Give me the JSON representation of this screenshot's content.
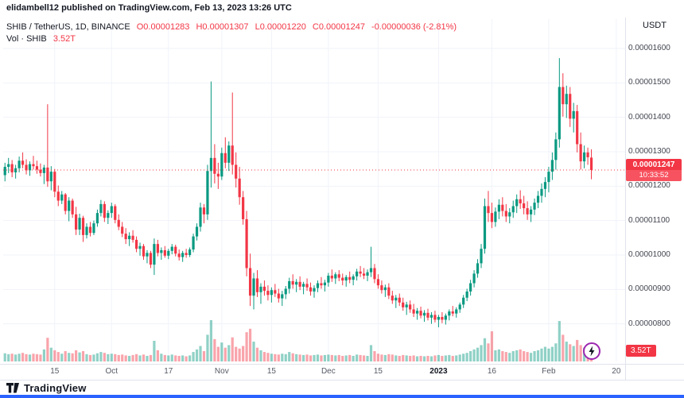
{
  "header": {
    "publisher_line": "elidambell12 published on TradingView.com, Feb 13, 2023 13:26 UTC"
  },
  "legend": {
    "symbol": "SHIB / TetherUS, 1D, BINANCE",
    "open": "O0.00001283",
    "high": "H0.00001307",
    "low": "L0.00001220",
    "close": "C0.00001247",
    "change": "-0.00000036 (-2.81%)",
    "volume_label": "Vol · SHIB",
    "volume_value": "3.52T"
  },
  "price_axis": {
    "currency": "USDT",
    "ticks": [
      "0.00001600",
      "0.00001500",
      "0.00001400",
      "0.00001300",
      "0.00001200",
      "0.00001100",
      "0.00001000",
      "0.00000900",
      "0.00000800"
    ],
    "last_price_tag": {
      "price": "0.00001247",
      "countdown": "10:33:52"
    },
    "volume_tag": "3.52T"
  },
  "time_axis": {
    "ticks": [
      {
        "label": "15",
        "slot": 14
      },
      {
        "label": "Oct",
        "slot": 30
      },
      {
        "label": "17",
        "slot": 46
      },
      {
        "label": "Nov",
        "slot": 61
      },
      {
        "label": "15",
        "slot": 75
      },
      {
        "label": "Dec",
        "slot": 91
      },
      {
        "label": "15",
        "slot": 105
      },
      {
        "label": "2023",
        "slot": 122,
        "bold": true
      },
      {
        "label": "16",
        "slot": 137
      },
      {
        "label": "Feb",
        "slot": 153
      },
      {
        "label": "20",
        "slot": 172
      }
    ]
  },
  "footer": {
    "brand": "TradingView"
  },
  "colors": {
    "up": "#089981",
    "down": "#f23645",
    "up_soft": "rgba(8,153,129,0.45)",
    "down_soft": "rgba(242,54,69,0.45)",
    "grid": "#f0f3fa",
    "border": "#e0e3eb",
    "accent_blue": "#2962ff",
    "tag_red": "#f23645",
    "boost_purple": "#9c27b0"
  },
  "chart_data": {
    "type": "candlestick+volume",
    "symbol": "SHIB/USDT",
    "exchange": "BINANCE",
    "interval": "1D",
    "title": "SHIB / TetherUS, 1D, BINANCE",
    "price_unit": 1e-08,
    "ylim": [
      760,
      1660
    ],
    "slots": 175,
    "last_close": 1247,
    "volume_unit": "T",
    "legend_position": "top-left",
    "grid": true,
    "candles": [
      [
        1232,
        1268,
        1214,
        1256
      ],
      [
        1256,
        1282,
        1238,
        1264
      ],
      [
        1264,
        1276,
        1226,
        1240
      ],
      [
        1240,
        1262,
        1222,
        1252
      ],
      [
        1252,
        1286,
        1240,
        1274
      ],
      [
        1274,
        1298,
        1252,
        1262
      ],
      [
        1262,
        1278,
        1234,
        1246
      ],
      [
        1246,
        1272,
        1230,
        1264
      ],
      [
        1264,
        1288,
        1248,
        1258
      ],
      [
        1258,
        1274,
        1236,
        1248
      ],
      [
        1248,
        1266,
        1228,
        1238
      ],
      [
        1238,
        1262,
        1206,
        1254
      ],
      [
        1254,
        1438,
        1198,
        1214
      ],
      [
        1214,
        1258,
        1188,
        1242
      ],
      [
        1242,
        1250,
        1168,
        1184
      ],
      [
        1184,
        1202,
        1142,
        1158
      ],
      [
        1158,
        1186,
        1148,
        1176
      ],
      [
        1176,
        1180,
        1118,
        1128
      ],
      [
        1128,
        1168,
        1098,
        1158
      ],
      [
        1158,
        1164,
        1108,
        1118
      ],
      [
        1118,
        1140,
        1058,
        1074
      ],
      [
        1074,
        1120,
        1058,
        1108
      ],
      [
        1108,
        1114,
        1038,
        1058
      ],
      [
        1058,
        1092,
        1048,
        1082
      ],
      [
        1082,
        1096,
        1054,
        1064
      ],
      [
        1064,
        1100,
        1058,
        1092
      ],
      [
        1092,
        1132,
        1082,
        1122
      ],
      [
        1122,
        1160,
        1112,
        1148
      ],
      [
        1148,
        1156,
        1096,
        1108
      ],
      [
        1108,
        1130,
        1090,
        1122
      ],
      [
        1122,
        1152,
        1108,
        1142
      ],
      [
        1142,
        1148,
        1092,
        1102
      ],
      [
        1102,
        1118,
        1072,
        1082
      ],
      [
        1082,
        1096,
        1052,
        1062
      ],
      [
        1062,
        1078,
        1032,
        1046
      ],
      [
        1046,
        1066,
        1026,
        1056
      ],
      [
        1056,
        1072,
        1036,
        1044
      ],
      [
        1044,
        1054,
        1008,
        1018
      ],
      [
        1018,
        1036,
        998,
        1026
      ],
      [
        1026,
        1032,
        986,
        996
      ],
      [
        996,
        1014,
        976,
        1006
      ],
      [
        1006,
        1012,
        962,
        972
      ],
      [
        972,
        1048,
        942,
        1032
      ],
      [
        1032,
        1044,
        996,
        1006
      ],
      [
        1006,
        1022,
        986,
        1014
      ],
      [
        1014,
        1026,
        992,
        998
      ],
      [
        998,
        1018,
        988,
        1012
      ],
      [
        1012,
        1032,
        1002,
        1024
      ],
      [
        1024,
        1030,
        996,
        1004
      ],
      [
        1004,
        1016,
        984,
        994
      ],
      [
        994,
        1012,
        980,
        1006
      ],
      [
        1006,
        1018,
        992,
        1000
      ],
      [
        1000,
        1022,
        994,
        1016
      ],
      [
        1016,
        1062,
        1008,
        1054
      ],
      [
        1054,
        1092,
        1042,
        1082
      ],
      [
        1082,
        1152,
        1068,
        1138
      ],
      [
        1138,
        1148,
        1092,
        1118
      ],
      [
        1118,
        1262,
        1102,
        1244
      ],
      [
        1244,
        1504,
        1196,
        1282
      ],
      [
        1282,
        1322,
        1208,
        1236
      ],
      [
        1236,
        1268,
        1192,
        1228
      ],
      [
        1228,
        1312,
        1218,
        1296
      ],
      [
        1296,
        1342,
        1252,
        1268
      ],
      [
        1268,
        1330,
        1244,
        1318
      ],
      [
        1318,
        1472,
        1234,
        1262
      ],
      [
        1262,
        1298,
        1196,
        1222
      ],
      [
        1222,
        1256,
        1146,
        1168
      ],
      [
        1168,
        1186,
        1088,
        1104
      ],
      [
        1104,
        1128,
        938,
        962
      ],
      [
        962,
        1004,
        852,
        882
      ],
      [
        882,
        948,
        842,
        932
      ],
      [
        932,
        956,
        878,
        892
      ],
      [
        892,
        918,
        858,
        908
      ],
      [
        908,
        926,
        882,
        896
      ],
      [
        896,
        912,
        868,
        884
      ],
      [
        884,
        906,
        862,
        898
      ],
      [
        898,
        916,
        878,
        888
      ],
      [
        888,
        902,
        862,
        874
      ],
      [
        874,
        896,
        852,
        886
      ],
      [
        886,
        910,
        872,
        902
      ],
      [
        902,
        934,
        888,
        924
      ],
      [
        924,
        944,
        902,
        914
      ],
      [
        914,
        930,
        892,
        922
      ],
      [
        922,
        938,
        898,
        908
      ],
      [
        908,
        922,
        886,
        916
      ],
      [
        916,
        932,
        896,
        906
      ],
      [
        906,
        920,
        882,
        894
      ],
      [
        894,
        912,
        876,
        904
      ],
      [
        904,
        926,
        892,
        918
      ],
      [
        918,
        936,
        902,
        912
      ],
      [
        912,
        928,
        894,
        920
      ],
      [
        920,
        948,
        908,
        940
      ],
      [
        940,
        958,
        922,
        932
      ],
      [
        932,
        950,
        916,
        944
      ],
      [
        944,
        956,
        924,
        934
      ],
      [
        934,
        946,
        912,
        926
      ],
      [
        926,
        942,
        908,
        936
      ],
      [
        936,
        952,
        918,
        928
      ],
      [
        928,
        944,
        912,
        938
      ],
      [
        938,
        960,
        926,
        952
      ],
      [
        952,
        968,
        936,
        946
      ],
      [
        946,
        962,
        930,
        940
      ],
      [
        940,
        958,
        924,
        950
      ],
      [
        950,
        1024,
        936,
        962
      ],
      [
        962,
        974,
        918,
        930
      ],
      [
        930,
        944,
        902,
        912
      ],
      [
        912,
        926,
        888,
        898
      ],
      [
        898,
        914,
        878,
        906
      ],
      [
        906,
        918,
        872,
        882
      ],
      [
        882,
        896,
        858,
        868
      ],
      [
        868,
        884,
        846,
        876
      ],
      [
        876,
        888,
        852,
        862
      ],
      [
        862,
        876,
        838,
        848
      ],
      [
        848,
        864,
        826,
        856
      ],
      [
        856,
        868,
        832,
        842
      ],
      [
        842,
        858,
        820,
        830
      ],
      [
        830,
        846,
        812,
        838
      ],
      [
        838,
        850,
        816,
        824
      ],
      [
        824,
        840,
        806,
        832
      ],
      [
        832,
        844,
        810,
        818
      ],
      [
        818,
        834,
        800,
        826
      ],
      [
        826,
        838,
        804,
        812
      ],
      [
        812,
        826,
        790,
        820
      ],
      [
        820,
        834,
        802,
        812
      ],
      [
        812,
        830,
        798,
        824
      ],
      [
        824,
        842,
        810,
        836
      ],
      [
        836,
        852,
        822,
        830
      ],
      [
        830,
        848,
        818,
        842
      ],
      [
        842,
        862,
        832,
        856
      ],
      [
        856,
        884,
        846,
        876
      ],
      [
        876,
        902,
        866,
        894
      ],
      [
        894,
        928,
        882,
        918
      ],
      [
        918,
        956,
        906,
        946
      ],
      [
        946,
        988,
        934,
        976
      ],
      [
        976,
        1032,
        962,
        1018
      ],
      [
        1018,
        1164,
        1004,
        1142
      ],
      [
        1142,
        1186,
        1096,
        1122
      ],
      [
        1122,
        1152,
        1078,
        1096
      ],
      [
        1096,
        1138,
        1082,
        1126
      ],
      [
        1126,
        1162,
        1104,
        1146
      ],
      [
        1146,
        1168,
        1112,
        1128
      ],
      [
        1128,
        1148,
        1096,
        1112
      ],
      [
        1112,
        1136,
        1092,
        1124
      ],
      [
        1124,
        1158,
        1108,
        1142
      ],
      [
        1142,
        1176,
        1122,
        1162
      ],
      [
        1162,
        1188,
        1134,
        1150
      ],
      [
        1150,
        1172,
        1118,
        1136
      ],
      [
        1136,
        1156,
        1102,
        1118
      ],
      [
        1118,
        1142,
        1096,
        1132
      ],
      [
        1132,
        1164,
        1116,
        1152
      ],
      [
        1152,
        1186,
        1136,
        1172
      ],
      [
        1172,
        1208,
        1152,
        1192
      ],
      [
        1192,
        1226,
        1168,
        1212
      ],
      [
        1212,
        1256,
        1182,
        1242
      ],
      [
        1242,
        1298,
        1218,
        1276
      ],
      [
        1276,
        1356,
        1248,
        1336
      ],
      [
        1336,
        1572,
        1312,
        1488
      ],
      [
        1488,
        1528,
        1402,
        1438
      ],
      [
        1438,
        1492,
        1398,
        1468
      ],
      [
        1468,
        1488,
        1372,
        1396
      ],
      [
        1396,
        1442,
        1356,
        1418
      ],
      [
        1418,
        1436,
        1298,
        1322
      ],
      [
        1322,
        1356,
        1248,
        1272
      ],
      [
        1272,
        1318,
        1252,
        1298
      ],
      [
        1298,
        1312,
        1262,
        1284
      ],
      [
        1283,
        1307,
        1220,
        1247
      ]
    ],
    "volumes": [
      1.9,
      1.7,
      1.8,
      1.6,
      1.8,
      2.0,
      1.7,
      1.6,
      1.8,
      1.7,
      1.6,
      2.8,
      5.5,
      3.2,
      2.6,
      2.2,
      1.8,
      2.4,
      2.0,
      1.9,
      2.6,
      2.1,
      2.4,
      1.7,
      1.5,
      1.6,
      1.9,
      2.2,
      2.0,
      1.7,
      1.8,
      1.7,
      1.5,
      1.6,
      1.4,
      1.3,
      1.5,
      1.7,
      1.4,
      1.6,
      1.3,
      1.5,
      4.8,
      2.6,
      1.8,
      1.5,
      1.4,
      1.6,
      1.4,
      1.3,
      1.4,
      1.2,
      1.4,
      2.2,
      2.8,
      3.6,
      2.4,
      6.2,
      9.6,
      5.2,
      3.4,
      4.4,
      3.2,
      3.8,
      5.6,
      3.4,
      3.0,
      3.6,
      6.8,
      7.6,
      4.6,
      3.2,
      2.6,
      2.2,
      2.0,
      1.8,
      1.7,
      1.6,
      1.8,
      1.7,
      2.2,
      1.9,
      1.7,
      1.6,
      1.5,
      1.6,
      1.4,
      1.5,
      1.6,
      1.4,
      1.5,
      1.6,
      1.5,
      1.4,
      1.5,
      1.3,
      1.4,
      1.5,
      1.3,
      1.6,
      1.5,
      1.4,
      1.3,
      3.8,
      2.4,
      1.8,
      1.6,
      1.5,
      1.7,
      1.6,
      1.4,
      1.3,
      1.5,
      1.4,
      1.3,
      1.4,
      1.2,
      1.3,
      1.2,
      1.3,
      1.2,
      1.4,
      1.5,
      1.3,
      1.4,
      1.5,
      1.3,
      1.4,
      1.6,
      1.8,
      2.0,
      2.4,
      2.8,
      3.2,
      3.8,
      5.4,
      4.2,
      7.0,
      2.6,
      2.8,
      2.4,
      2.2,
      2.0,
      2.4,
      2.6,
      2.8,
      2.4,
      2.2,
      2.0,
      2.4,
      2.6,
      3.0,
      3.4,
      3.0,
      3.4,
      4.2,
      9.4,
      6.2,
      4.6,
      4.0,
      3.6,
      5.0,
      3.8,
      3.2,
      2.8,
      3.52
    ]
  }
}
